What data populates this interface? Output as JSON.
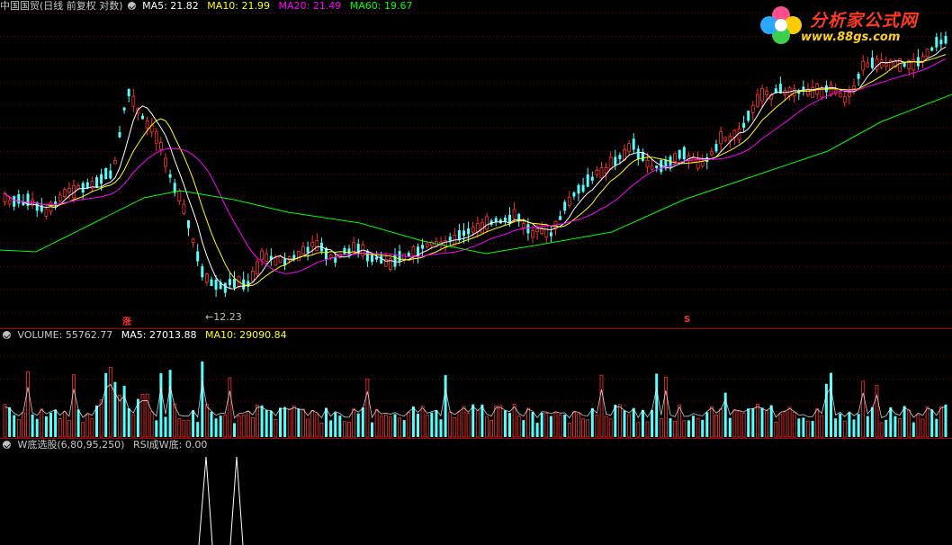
{
  "price_panel": {
    "title": "中国国贸(日线 前复权 对数)",
    "ma5": "MA5: 21.82",
    "ma10": "MA10: 21.99",
    "ma20": "MA20: 21.49",
    "ma60": "MA60: 19.67",
    "low_marker": "←12.23",
    "signal_up": "涨",
    "signal_s": "S",
    "colors": {
      "ma5": "#ffffff",
      "ma10": "#ffff00",
      "ma20": "#ff00ff",
      "ma60": "#00ff00",
      "up": "#ff3232",
      "down": "#54ffff"
    }
  },
  "volume_panel": {
    "volume": "VOLUME: 55762.77",
    "ma5": "MA5: 27013.88",
    "ma10": "MA10: 29090.84"
  },
  "indicator_panel": {
    "name": "W底选股(6,80,95,250)",
    "value": "RSI成W底: 0.00"
  },
  "logo": {
    "title": "分析家公式网",
    "url": "www.88gs.com"
  }
}
